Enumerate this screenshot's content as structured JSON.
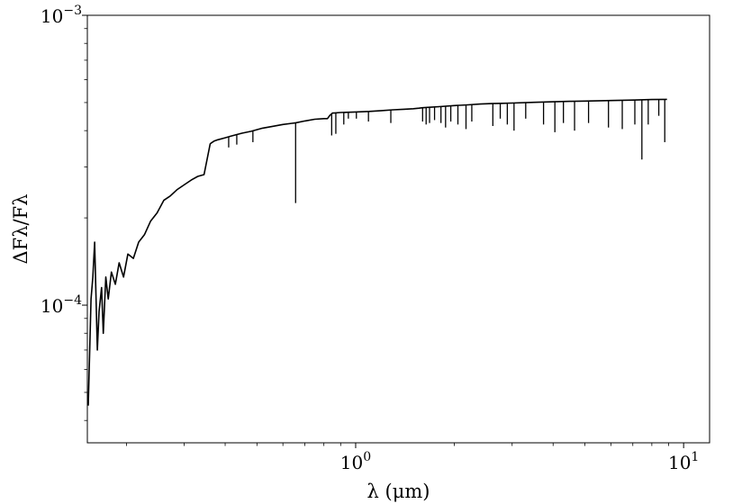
{
  "chart_data": {
    "type": "line",
    "title": "",
    "xlabel": "λ (μm)",
    "ylabel": "ΔFλ/Fλ",
    "xscale": "log",
    "yscale": "log",
    "xlim": [
      0.152,
      12.0
    ],
    "ylim": [
      3.35e-05,
      0.001
    ],
    "grid": false,
    "legend": "none",
    "line_color": "#000000",
    "x_ticks": [
      {
        "value": 1,
        "label": "10",
        "exp": "0"
      },
      {
        "value": 10,
        "label": "10",
        "exp": "1"
      }
    ],
    "y_ticks": [
      {
        "value": 0.0001,
        "label": "10",
        "exp": "−4"
      },
      {
        "value": 0.001,
        "label": "10",
        "exp": "−3"
      }
    ],
    "series": [
      {
        "x": [
          0.153,
          0.156,
          0.158,
          0.16,
          0.163,
          0.165,
          0.168,
          0.17,
          0.173,
          0.176,
          0.18,
          0.185,
          0.19,
          0.196,
          0.202,
          0.21,
          0.218,
          0.227,
          0.237,
          0.248,
          0.26,
          0.272,
          0.285,
          0.3,
          0.315,
          0.33,
          0.345,
          0.36,
          0.362,
          0.37,
          0.38,
          0.4,
          0.42,
          0.45,
          0.48,
          0.52,
          0.56,
          0.6,
          0.64,
          0.65,
          0.66,
          0.7,
          0.75,
          0.8,
          0.82,
          0.835,
          0.85,
          0.86,
          0.9,
          1.0,
          1.1,
          1.2,
          1.3,
          1.4,
          1.5,
          1.56,
          1.6,
          1.7,
          1.8,
          2.0,
          2.2,
          2.4,
          2.6,
          2.8,
          3.0,
          3.5,
          4.0,
          4.5,
          5.0,
          6.0,
          7.0,
          8.0,
          8.9
        ],
        "y": [
          4.5e-05,
          0.000105,
          0.000125,
          0.000165,
          7e-05,
          9.5e-05,
          0.000115,
          8e-05,
          0.000125,
          0.000105,
          0.00013,
          0.000118,
          0.00014,
          0.000125,
          0.00015,
          0.000145,
          0.000165,
          0.000175,
          0.000195,
          0.000208,
          0.00023,
          0.000238,
          0.00025,
          0.00026,
          0.00027,
          0.000278,
          0.000282,
          0.00036,
          0.000362,
          0.000368,
          0.000372,
          0.000378,
          0.000384,
          0.000392,
          0.000398,
          0.000408,
          0.000414,
          0.00042,
          0.000424,
          0.000425,
          0.000426,
          0.000432,
          0.000438,
          0.00044,
          0.00044,
          0.000452,
          0.00046,
          0.00046,
          0.000462,
          0.000464,
          0.000466,
          0.000469,
          0.000472,
          0.000474,
          0.000476,
          0.000478,
          0.00048,
          0.000482,
          0.000484,
          0.000488,
          0.000491,
          0.000494,
          0.000496,
          0.000497,
          0.000498,
          0.000501,
          0.000503,
          0.000505,
          0.000506,
          0.000508,
          0.00051,
          0.000512,
          0.000513
        ]
      }
    ],
    "absorption_lines": [
      {
        "x": 0.656,
        "y": 0.000225
      },
      {
        "x": 0.486,
        "y": 0.000365
      },
      {
        "x": 0.434,
        "y": 0.000358
      },
      {
        "x": 0.41,
        "y": 0.00035
      },
      {
        "x": 0.845,
        "y": 0.000385
      },
      {
        "x": 0.87,
        "y": 0.00039
      },
      {
        "x": 0.92,
        "y": 0.00042
      },
      {
        "x": 0.95,
        "y": 0.00044
      },
      {
        "x": 1.005,
        "y": 0.00044
      },
      {
        "x": 1.094,
        "y": 0.00043
      },
      {
        "x": 1.28,
        "y": 0.000425
      },
      {
        "x": 1.6,
        "y": 0.00043
      },
      {
        "x": 1.64,
        "y": 0.00042
      },
      {
        "x": 1.68,
        "y": 0.000425
      },
      {
        "x": 1.74,
        "y": 0.000435
      },
      {
        "x": 1.82,
        "y": 0.000425
      },
      {
        "x": 1.88,
        "y": 0.00041
      },
      {
        "x": 1.95,
        "y": 0.00043
      },
      {
        "x": 2.05,
        "y": 0.00042
      },
      {
        "x": 2.17,
        "y": 0.000405
      },
      {
        "x": 2.26,
        "y": 0.00043
      },
      {
        "x": 2.62,
        "y": 0.000415
      },
      {
        "x": 2.76,
        "y": 0.00044
      },
      {
        "x": 2.9,
        "y": 0.00042
      },
      {
        "x": 3.04,
        "y": 0.0004
      },
      {
        "x": 3.3,
        "y": 0.00044
      },
      {
        "x": 3.74,
        "y": 0.00042
      },
      {
        "x": 4.05,
        "y": 0.000395
      },
      {
        "x": 4.3,
        "y": 0.000425
      },
      {
        "x": 4.65,
        "y": 0.0004
      },
      {
        "x": 5.13,
        "y": 0.000425
      },
      {
        "x": 5.9,
        "y": 0.00041
      },
      {
        "x": 6.5,
        "y": 0.000405
      },
      {
        "x": 7.1,
        "y": 0.00042
      },
      {
        "x": 7.46,
        "y": 0.000318
      },
      {
        "x": 7.8,
        "y": 0.00042
      },
      {
        "x": 8.4,
        "y": 0.00045
      },
      {
        "x": 8.76,
        "y": 0.000365
      }
    ]
  }
}
